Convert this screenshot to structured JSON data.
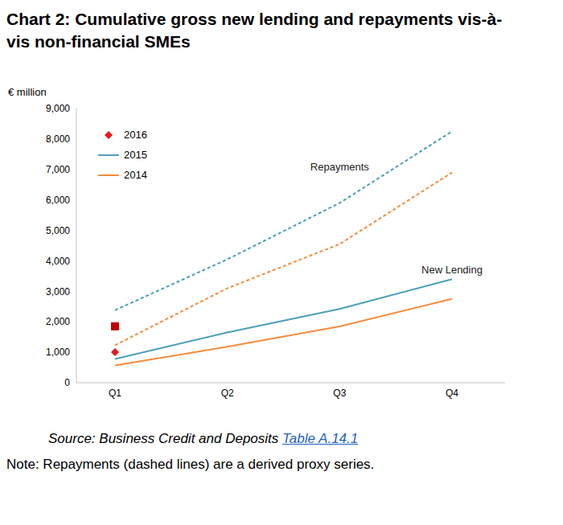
{
  "chart_data": {
    "type": "line",
    "title": "Chart 2: Cumulative gross new lending and repayments vis-à-vis non-financial SMEs",
    "y_label": "€ million",
    "categories": [
      "Q1",
      "Q2",
      "Q3",
      "Q4"
    ],
    "series": [
      {
        "name": "2016",
        "color": "#e31a1c",
        "values": [
          1000,
          null,
          null,
          null
        ],
        "marker": "diamond",
        "line_style": "none"
      },
      {
        "name": "2016",
        "color": "#c00000",
        "values": [
          1850,
          null,
          null,
          null
        ],
        "marker": "square",
        "line_style": "none"
      },
      {
        "name": "2015",
        "color": "#4a9fb8",
        "values": [
          780,
          1650,
          2420,
          3400
        ],
        "marker": "none",
        "line_style": "solid"
      },
      {
        "name": "2015",
        "color": "#4a9fb8",
        "values": [
          2380,
          4050,
          5900,
          8250
        ],
        "marker": "none",
        "line_style": "dashed"
      },
      {
        "name": "2014",
        "color": "#f58b3c",
        "values": [
          570,
          1180,
          1850,
          2750
        ],
        "marker": "none",
        "line_style": "solid"
      },
      {
        "name": "2014",
        "color": "#f58b3c",
        "values": [
          1230,
          3100,
          4550,
          6900
        ],
        "marker": "none",
        "line_style": "dashed"
      }
    ],
    "ylim": [
      0,
      9000
    ],
    "yticks": [
      0,
      {
        "value": 1000,
        "label": "1,000"
      },
      {
        "value": 2000,
        "label": "2,000"
      },
      {
        "value": 3000,
        "label": "3,000"
      },
      {
        "value": 4000,
        "label": "4,000"
      },
      {
        "value": 5000,
        "label": "5,000"
      },
      {
        "value": 6000,
        "label": "6,000"
      },
      {
        "value": 7000,
        "label": "7,000"
      },
      {
        "value": 8000,
        "label": "8,000"
      },
      {
        "value": 9000,
        "label": "9,000"
      }
    ],
    "grid": false,
    "legend": "upper left",
    "annotations": [
      {
        "text": "Repayments",
        "x": "Q3",
        "y": 7100
      },
      {
        "text": "New Lending",
        "x": "Q4",
        "y": 3700
      }
    ],
    "source": {
      "text": "Source: Business Credit and Deposits",
      "link": "Table A.14.1"
    },
    "note": "Note: Repayments (dashed lines) are a derived proxy series."
  }
}
